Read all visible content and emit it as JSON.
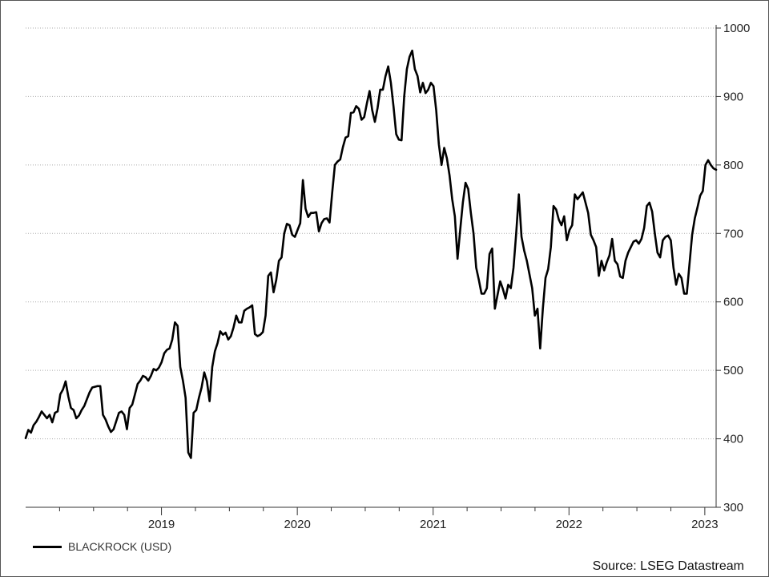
{
  "chart_data": {
    "type": "line",
    "ylim": [
      300,
      1000
    ],
    "y_ticks": [
      "300",
      "400",
      "500",
      "600",
      "700",
      "800",
      "900",
      "1000"
    ],
    "x_labels": [
      "2019",
      "2020",
      "2021",
      "2022",
      "2023"
    ],
    "grid": "horizontal dotted",
    "y_axis_side": "right",
    "legend_position": "bottom-left",
    "series": [
      {
        "name": "BLACKROCK (USD)",
        "color": "#000000",
        "start": "2018-07",
        "end": "2023-08",
        "values": [
          401,
          413,
          409,
          420,
          425,
          432,
          440,
          435,
          430,
          435,
          424,
          438,
          440,
          465,
          472,
          484,
          462,
          445,
          442,
          430,
          434,
          442,
          448,
          458,
          468,
          475,
          476,
          477,
          477,
          435,
          428,
          418,
          410,
          414,
          426,
          438,
          440,
          435,
          414,
          445,
          450,
          465,
          480,
          485,
          492,
          490,
          485,
          492,
          502,
          500,
          504,
          512,
          525,
          530,
          532,
          545,
          570,
          565,
          505,
          485,
          460,
          380,
          372,
          438,
          442,
          460,
          475,
          497,
          484,
          455,
          505,
          528,
          540,
          557,
          552,
          555,
          545,
          550,
          563,
          580,
          570,
          570,
          587,
          590,
          592,
          595,
          553,
          550,
          552,
          556,
          580,
          638,
          643,
          614,
          632,
          660,
          665,
          700,
          714,
          712,
          698,
          695,
          705,
          715,
          778,
          736,
          724,
          730,
          730,
          731,
          703,
          715,
          721,
          722,
          716,
          760,
          800,
          805,
          808,
          826,
          840,
          842,
          876,
          877,
          886,
          882,
          866,
          870,
          890,
          908,
          880,
          863,
          883,
          910,
          910,
          930,
          944,
          920,
          885,
          845,
          837,
          836,
          900,
          940,
          958,
          967,
          940,
          930,
          906,
          920,
          905,
          910,
          920,
          915,
          880,
          830,
          800,
          825,
          810,
          785,
          750,
          725,
          663,
          705,
          745,
          774,
          765,
          730,
          700,
          650,
          632,
          612,
          612,
          620,
          670,
          678,
          590,
          610,
          630,
          619,
          605,
          625,
          620,
          650,
          700,
          757,
          695,
          675,
          660,
          640,
          620,
          580,
          590,
          532,
          590,
          635,
          648,
          680,
          740,
          735,
          720,
          712,
          725,
          690,
          705,
          712,
          757,
          750,
          755,
          760,
          745,
          730,
          698,
          690,
          680,
          638,
          660,
          646,
          658,
          668,
          692,
          660,
          655,
          637,
          635,
          660,
          672,
          680,
          688,
          690,
          685,
          692,
          708,
          740,
          745,
          732,
          700,
          672,
          665,
          690,
          695,
          697,
          690,
          650,
          625,
          641,
          635,
          612,
          612,
          655,
          698,
          722,
          738,
          755,
          762,
          800,
          807,
          800,
          795,
          793
        ]
      }
    ],
    "source": "Source: LSEG Datastream"
  }
}
